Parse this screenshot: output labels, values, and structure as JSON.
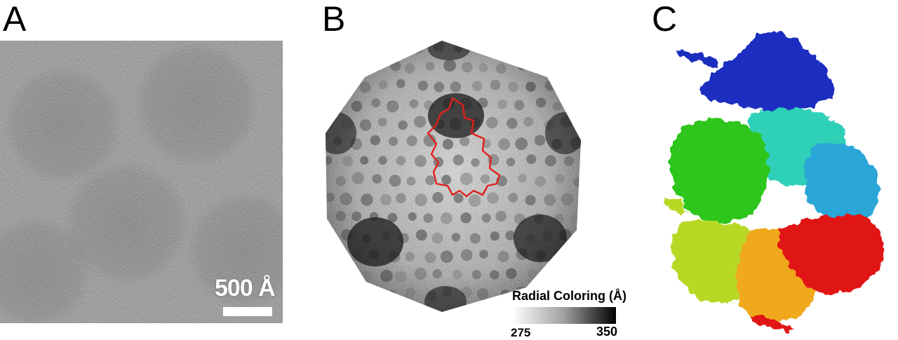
{
  "panels": {
    "a": {
      "letter": "A",
      "scale_label": "500 Å"
    },
    "b": {
      "letter": "B",
      "legend": {
        "title": "Radial Coloring (Å)",
        "min": "275",
        "max": "350"
      }
    },
    "c": {
      "letter": "C"
    }
  },
  "colors": {
    "micrograph_gray": "#8a8a8a",
    "outline_red": "#e0201c",
    "subunit_blue": "#1a2fbf",
    "subunit_teal": "#2fd0b8",
    "subunit_cyan": "#2aa6d8",
    "subunit_green": "#2ec51c",
    "subunit_yellowgreen": "#b7d927",
    "subunit_orange": "#f0a81f",
    "subunit_red": "#e01818"
  }
}
